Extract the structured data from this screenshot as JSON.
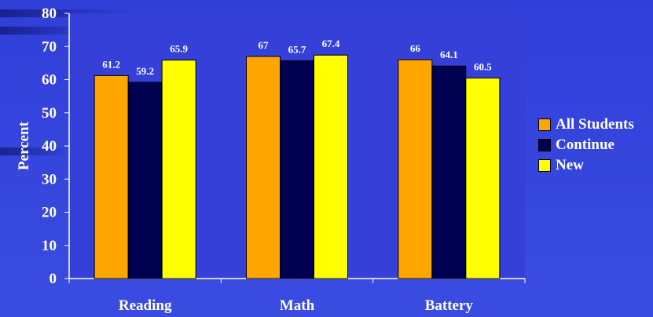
{
  "chart_data": {
    "type": "bar",
    "categories": [
      "Reading",
      "Math",
      "Battery"
    ],
    "series": [
      {
        "name": "All Students",
        "color": "#ffa500",
        "values": [
          61.2,
          67,
          66
        ],
        "labels": [
          "61.2",
          "67",
          "66"
        ]
      },
      {
        "name": "Continue",
        "color": "#000050",
        "values": [
          59.2,
          65.7,
          64.1
        ],
        "labels": [
          "59.2",
          "65.7",
          "64.1"
        ]
      },
      {
        "name": "New",
        "color": "#ffff00",
        "values": [
          65.9,
          67.4,
          60.5
        ],
        "labels": [
          "65.9",
          "67.4",
          "60.5"
        ]
      }
    ],
    "ylabel": "Percent",
    "ylim": [
      0,
      80
    ],
    "yticks": [
      "0",
      "10",
      "20",
      "30",
      "40",
      "50",
      "60",
      "70",
      "80"
    ],
    "legend_position": "right",
    "grid": false,
    "plot_background": "#3440d8"
  }
}
